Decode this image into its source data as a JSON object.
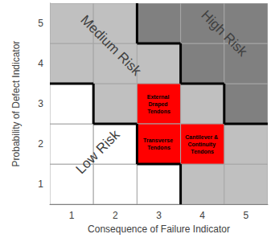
{
  "chart_data": {
    "type": "heatmap",
    "xlabel": "Consequence of Failure Indicator",
    "ylabel": "Probability of Defect Indicator",
    "xlim": [
      0.5,
      5.5
    ],
    "ylim": [
      0.5,
      5.5
    ],
    "xticks": [
      1,
      2,
      3,
      4,
      5
    ],
    "yticks": [
      1,
      2,
      3,
      4,
      5
    ],
    "zones": [
      {
        "name": "Low Risk",
        "color": "#ffffff"
      },
      {
        "name": "Medium Risk",
        "color": "#c0c0c0"
      },
      {
        "name": "High Risk",
        "color": "#808080"
      }
    ],
    "cells": [
      {
        "x": 1,
        "y": 1,
        "zone": "Low Risk"
      },
      {
        "x": 2,
        "y": 1,
        "zone": "Low Risk"
      },
      {
        "x": 3,
        "y": 1,
        "zone": "Low Risk"
      },
      {
        "x": 4,
        "y": 1,
        "zone": "Medium Risk"
      },
      {
        "x": 5,
        "y": 1,
        "zone": "Medium Risk"
      },
      {
        "x": 1,
        "y": 2,
        "zone": "Low Risk"
      },
      {
        "x": 2,
        "y": 2,
        "zone": "Low Risk"
      },
      {
        "x": 3,
        "y": 2,
        "zone": "Medium Risk"
      },
      {
        "x": 4,
        "y": 2,
        "zone": "Medium Risk"
      },
      {
        "x": 5,
        "y": 2,
        "zone": "Medium Risk"
      },
      {
        "x": 1,
        "y": 3,
        "zone": "Low Risk"
      },
      {
        "x": 2,
        "y": 3,
        "zone": "Medium Risk"
      },
      {
        "x": 3,
        "y": 3,
        "zone": "Medium Risk"
      },
      {
        "x": 4,
        "y": 3,
        "zone": "Medium Risk"
      },
      {
        "x": 5,
        "y": 3,
        "zone": "High Risk"
      },
      {
        "x": 1,
        "y": 4,
        "zone": "Medium Risk"
      },
      {
        "x": 2,
        "y": 4,
        "zone": "Medium Risk"
      },
      {
        "x": 3,
        "y": 4,
        "zone": "Medium Risk"
      },
      {
        "x": 4,
        "y": 4,
        "zone": "High Risk"
      },
      {
        "x": 5,
        "y": 4,
        "zone": "High Risk"
      },
      {
        "x": 1,
        "y": 5,
        "zone": "Medium Risk"
      },
      {
        "x": 2,
        "y": 5,
        "zone": "Medium Risk"
      },
      {
        "x": 3,
        "y": 5,
        "zone": "High Risk"
      },
      {
        "x": 4,
        "y": 5,
        "zone": "High Risk"
      },
      {
        "x": 5,
        "y": 5,
        "zone": "High Risk"
      }
    ],
    "highlights": [
      {
        "x": 3,
        "y": 3,
        "label": "External Draped Tendons",
        "color": "#ff0000"
      },
      {
        "x": 3,
        "y": 2,
        "label": "Transverse Tendons",
        "color": "#ff0000"
      },
      {
        "x": 4,
        "y": 2,
        "label": "Cantilever & Continuity Tendons",
        "color": "#ff0000"
      }
    ]
  }
}
